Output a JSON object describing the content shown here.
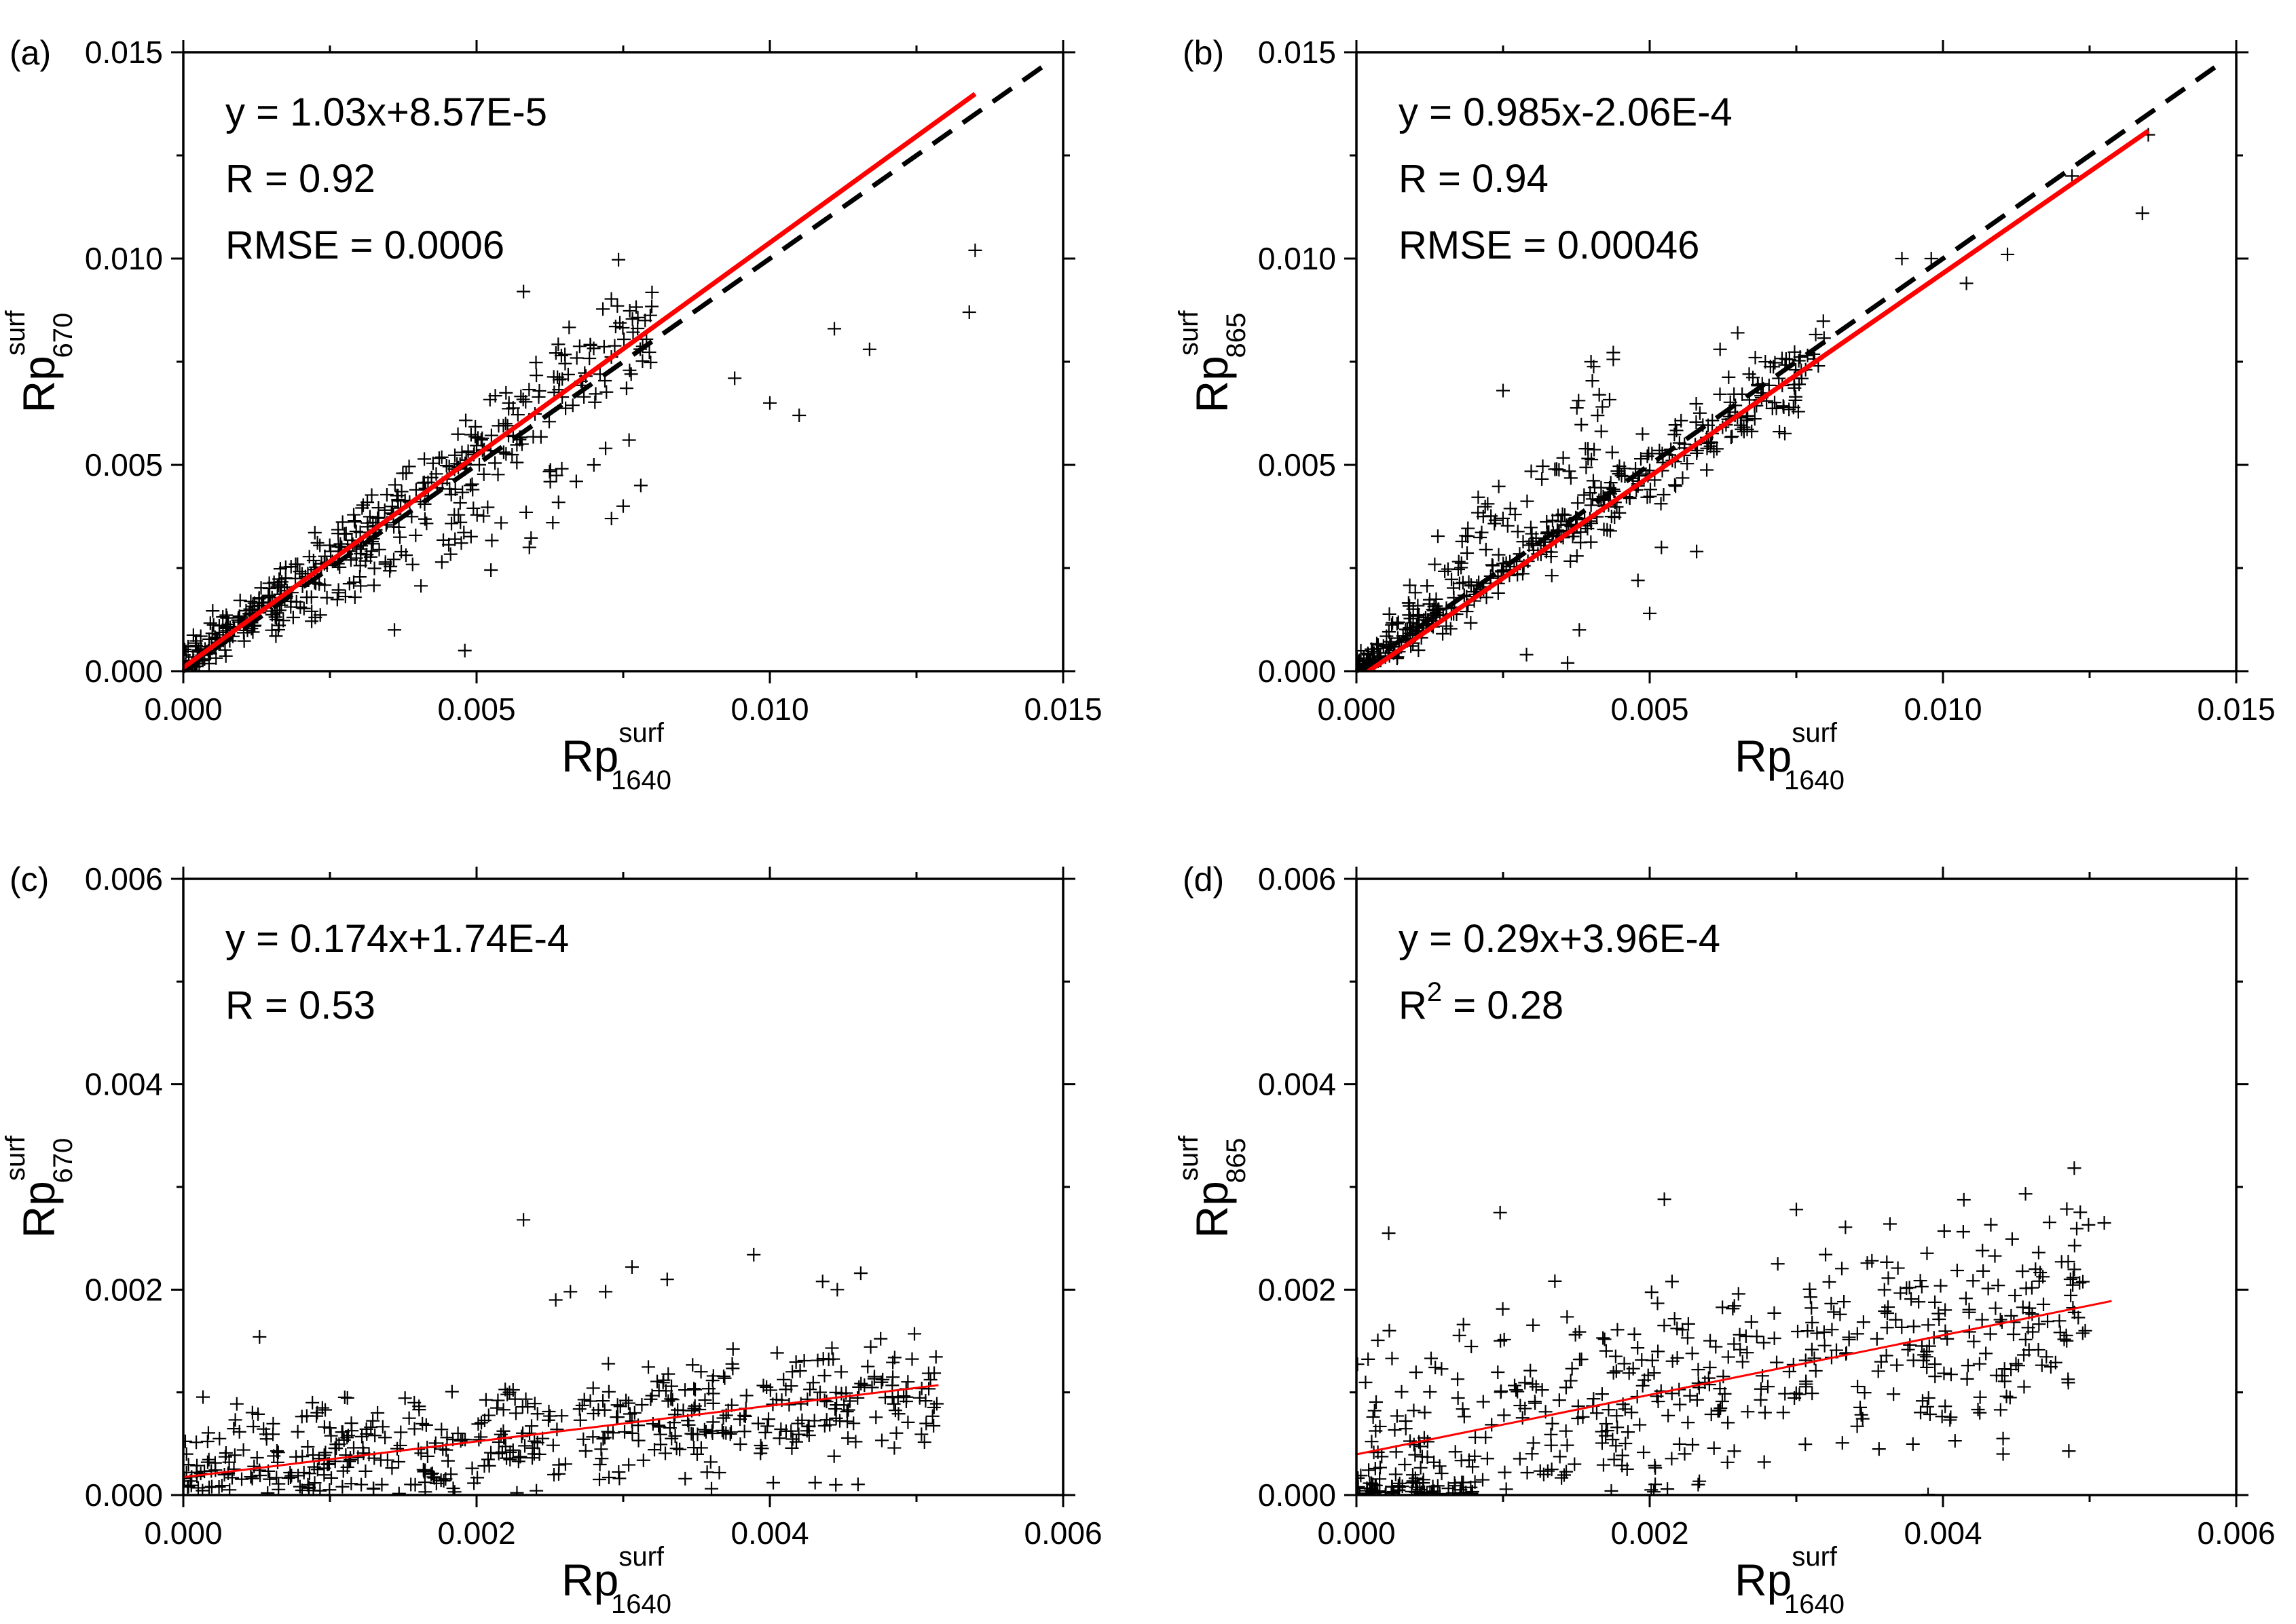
{
  "chart_data": [
    {
      "panel": "(a)",
      "type": "scatter",
      "xlabel": {
        "main": "Rp",
        "sup": "surf",
        "sub": "1640"
      },
      "ylabel": {
        "main": "Rp",
        "sup": "surf",
        "sub": "670"
      },
      "xlim": [
        0,
        0.015
      ],
      "ylim": [
        0,
        0.015
      ],
      "xticks": [
        "0.000",
        "0.005",
        "0.010",
        "0.015"
      ],
      "yticks": [
        "0.000",
        "0.005",
        "0.010",
        "0.015"
      ],
      "annotations": [
        {
          "text": "y = 1.03x+8.57E-5"
        },
        {
          "text": "R = 0.92"
        },
        {
          "text": "RMSE = 0.0006"
        }
      ],
      "fit_line": {
        "slope": 1.03,
        "intercept": 8.57e-05,
        "x_range": [
          0,
          0.0135
        ],
        "color": "#ff0000"
      },
      "reference_line": {
        "type": "1:1",
        "style": "dashed",
        "x_range": [
          0,
          0.0147
        ],
        "color": "#000000"
      },
      "scatter": {
        "marker": "+",
        "outliers": [
          [
            0.0135,
            0.0102
          ],
          [
            0.0134,
            0.0087
          ],
          [
            0.0111,
            0.0083
          ],
          [
            0.0117,
            0.0078
          ],
          [
            0.0094,
            0.0071
          ],
          [
            0.01,
            0.0065
          ],
          [
            0.0105,
            0.0062
          ],
          [
            0.0058,
            0.0092
          ],
          [
            0.0076,
            0.0056
          ],
          [
            0.0072,
            0.0054
          ],
          [
            0.0078,
            0.0045
          ],
          [
            0.0075,
            0.004
          ],
          [
            0.0073,
            0.0037
          ],
          [
            0.0063,
            0.0036
          ],
          [
            0.0059,
            0.003
          ],
          [
            0.0048,
            0.0005
          ],
          [
            0.0036,
            0.001
          ],
          [
            0.007,
            0.005
          ],
          [
            0.0067,
            0.0046
          ]
        ],
        "dense_clusters": [
          {
            "x_range": [
              0.0,
              0.008
            ],
            "slope": 1.05,
            "intercept": 0.0002,
            "spread": 0.00055,
            "count": 380
          },
          {
            "x_range": [
              0.0015,
              0.0065
            ],
            "slope": 0.78,
            "intercept": 0.0,
            "spread": 0.0006,
            "count": 90
          }
        ]
      }
    },
    {
      "panel": "(b)",
      "type": "scatter",
      "xlabel": {
        "main": "Rp",
        "sup": "surf",
        "sub": "1640"
      },
      "ylabel": {
        "main": "Rp",
        "sup": "surf",
        "sub": "865"
      },
      "xlim": [
        0,
        0.015
      ],
      "ylim": [
        0,
        0.015
      ],
      "xticks": [
        "0.000",
        "0.005",
        "0.010",
        "0.015"
      ],
      "yticks": [
        "0.000",
        "0.005",
        "0.010",
        "0.015"
      ],
      "annotations": [
        {
          "text": "y = 0.985x-2.06E-4"
        },
        {
          "text": "R = 0.94"
        },
        {
          "text": "RMSE = 0.00046"
        }
      ],
      "fit_line": {
        "slope": 0.985,
        "intercept": -0.000206,
        "x_range": [
          0.0002,
          0.0135
        ],
        "color": "#ff0000"
      },
      "reference_line": {
        "type": "1:1",
        "style": "dashed",
        "x_range": [
          0,
          0.0147
        ],
        "color": "#000000"
      },
      "scatter": {
        "marker": "+",
        "outliers": [
          [
            0.0135,
            0.013
          ],
          [
            0.0134,
            0.0111
          ],
          [
            0.0122,
            0.012
          ],
          [
            0.0111,
            0.0101
          ],
          [
            0.0098,
            0.01
          ],
          [
            0.0104,
            0.0094
          ],
          [
            0.0093,
            0.01
          ],
          [
            0.0065,
            0.0082
          ],
          [
            0.0068,
            0.0076
          ],
          [
            0.0062,
            0.0078
          ],
          [
            0.004,
            0.0075
          ],
          [
            0.005,
            0.0014
          ],
          [
            0.0052,
            0.003
          ],
          [
            0.0058,
            0.0029
          ],
          [
            0.0048,
            0.0022
          ],
          [
            0.0038,
            0.001
          ],
          [
            0.0029,
            0.0004
          ],
          [
            0.0036,
            0.0002
          ],
          [
            0.0025,
            0.0068
          ]
        ],
        "dense_clusters": [
          {
            "x_range": [
              0.0,
              0.008
            ],
            "slope": 0.97,
            "intercept": 0.0,
            "spread": 0.0005,
            "count": 400
          },
          {
            "x_range": [
              0.0005,
              0.0045
            ],
            "slope": 1.45,
            "intercept": 0.0003,
            "spread": 0.0007,
            "count": 80
          }
        ]
      }
    },
    {
      "panel": "(c)",
      "type": "scatter",
      "xlabel": {
        "main": "Rp",
        "sup": "surf",
        "sub": "1640"
      },
      "ylabel": {
        "main": "Rp",
        "sup": "surf",
        "sub": "670"
      },
      "xlim": [
        0,
        0.006
      ],
      "ylim": [
        0,
        0.006
      ],
      "xticks": [
        "0.000",
        "0.002",
        "0.004",
        "0.006"
      ],
      "yticks": [
        "0.000",
        "0.002",
        "0.004",
        "0.006"
      ],
      "annotations": [
        {
          "text": "y = 0.174x+1.74E-4"
        },
        {
          "text": "R = 0.53"
        }
      ],
      "fit_line": {
        "slope": 0.174,
        "intercept": 0.000174,
        "x_range": [
          0,
          0.00515
        ],
        "color": "#ff0000"
      },
      "scatter": {
        "marker": "+",
        "outliers": [
          [
            0.00232,
            0.00268
          ],
          [
            0.00389,
            0.00234
          ],
          [
            0.00306,
            0.00222
          ],
          [
            0.00436,
            0.00208
          ],
          [
            0.00462,
            0.00216
          ],
          [
            0.00446,
            0.002
          ],
          [
            0.00264,
            0.00198
          ],
          [
            0.00254,
            0.0019
          ],
          [
            0.00288,
            0.00198
          ],
          [
            0.0033,
            0.0021
          ],
          [
            0.00052,
            0.00154
          ],
          [
            0.00445,
            0.0001
          ]
        ],
        "dense_clusters": [
          {
            "x_range": [
              0.0,
              0.00515
            ],
            "slope": 0.174,
            "intercept": 0.00016,
            "spread": 0.0005,
            "count": 520
          }
        ]
      }
    },
    {
      "panel": "(d)",
      "type": "scatter",
      "xlabel": {
        "main": "Rp",
        "sup": "surf",
        "sub": "1640"
      },
      "ylabel": {
        "main": "Rp",
        "sup": "surf",
        "sub": "865"
      },
      "xlim": [
        0,
        0.006
      ],
      "ylim": [
        0,
        0.006
      ],
      "xticks": [
        "0.000",
        "0.002",
        "0.004",
        "0.006"
      ],
      "yticks": [
        "0.000",
        "0.002",
        "0.004",
        "0.006"
      ],
      "annotations": [
        {
          "text": "y = 0.29x+3.96E-4"
        },
        {
          "text": "R",
          "sup": "2",
          "after": " = 0.28"
        }
      ],
      "fit_line": {
        "slope": 0.29,
        "intercept": 0.000396,
        "x_range": [
          0,
          0.00515
        ],
        "color": "#ff0000"
      },
      "scatter": {
        "marker": "+",
        "outliers": [
          [
            0.0051,
            0.00265
          ],
          [
            0.00497,
            0.0016
          ],
          [
            0.00441,
            0.00055
          ],
          [
            0.00441,
            0.0004
          ],
          [
            0.0021,
            0.00288
          ],
          [
            0.003,
            0.00278
          ],
          [
            0.00098,
            0.00275
          ],
          [
            0.00022,
            0.00255
          ]
        ],
        "dense_clusters": [
          {
            "x_range": [
              0.0,
              0.005
            ],
            "slope": 0.29,
            "intercept": 0.0004,
            "spread": 0.00085,
            "count": 470
          },
          {
            "x_range": [
              0.0,
              0.0008
            ],
            "slope": 0.0,
            "intercept": 5e-05,
            "spread": 6e-05,
            "count": 60
          }
        ]
      }
    }
  ]
}
